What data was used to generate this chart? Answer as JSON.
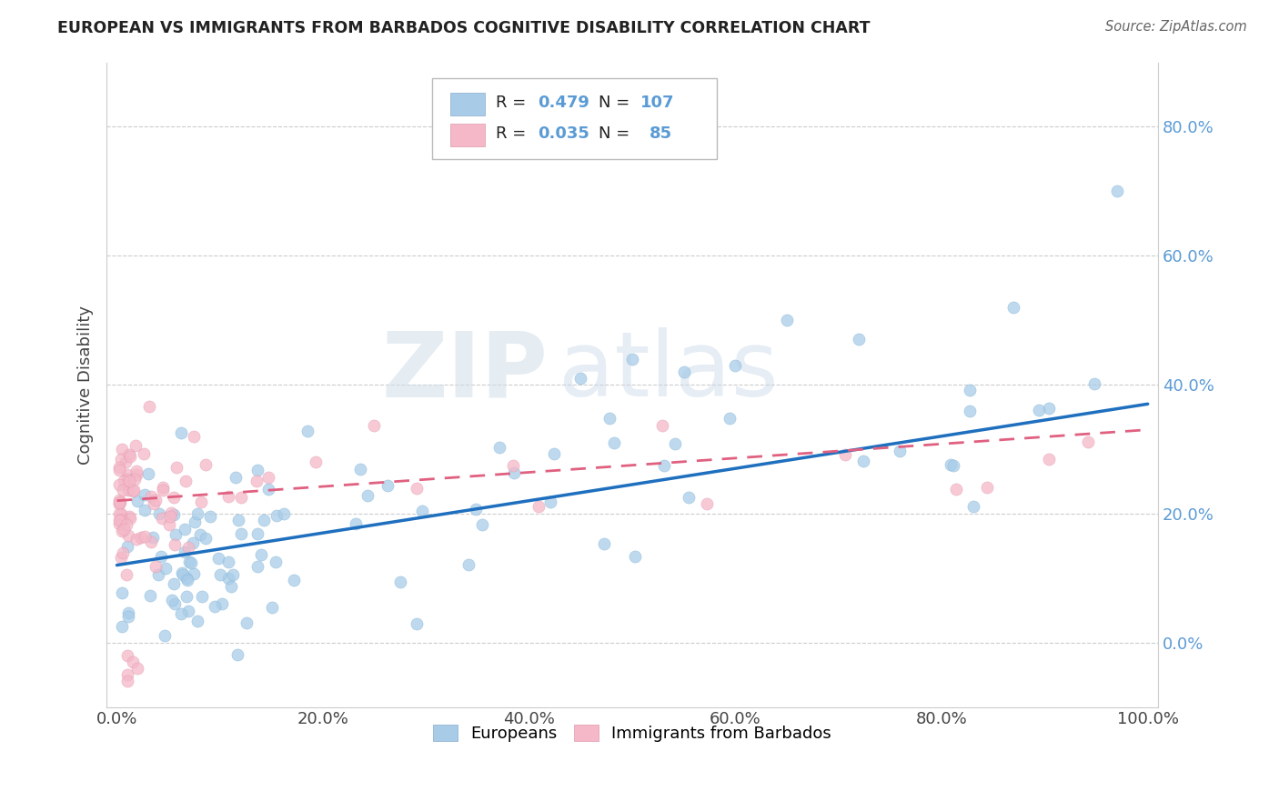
{
  "title": "EUROPEAN VS IMMIGRANTS FROM BARBADOS COGNITIVE DISABILITY CORRELATION CHART",
  "source": "Source: ZipAtlas.com",
  "ylabel": "Cognitive Disability",
  "color_european": "#a8cce8",
  "color_barbados": "#f4b8c8",
  "color_european_line": "#1f6fbf",
  "color_barbados_line": "#e06080",
  "watermark_zip": "ZIP",
  "watermark_atlas": "atlas",
  "background_color": "#ffffff",
  "eu_R": "0.479",
  "eu_N": "107",
  "bb_R": "0.035",
  "bb_N": "85",
  "ytick_vals": [
    0.0,
    0.2,
    0.4,
    0.6,
    0.8
  ],
  "ytick_labels": [
    "0.0%",
    "20.0%",
    "40.0%",
    "60.0%",
    "80.0%"
  ],
  "xtick_vals": [
    0.0,
    0.2,
    0.4,
    0.6,
    0.8,
    1.0
  ],
  "xtick_labels": [
    "0.0%",
    "20.0%",
    "40.0%",
    "60.0%",
    "80.0%",
    "100.0%"
  ],
  "eu_line_x0": 0.0,
  "eu_line_y0": 0.12,
  "eu_line_x1": 1.0,
  "eu_line_y1": 0.37,
  "bb_line_x0": 0.0,
  "bb_line_y0": 0.22,
  "bb_line_x1": 1.0,
  "bb_line_y1": 0.33
}
